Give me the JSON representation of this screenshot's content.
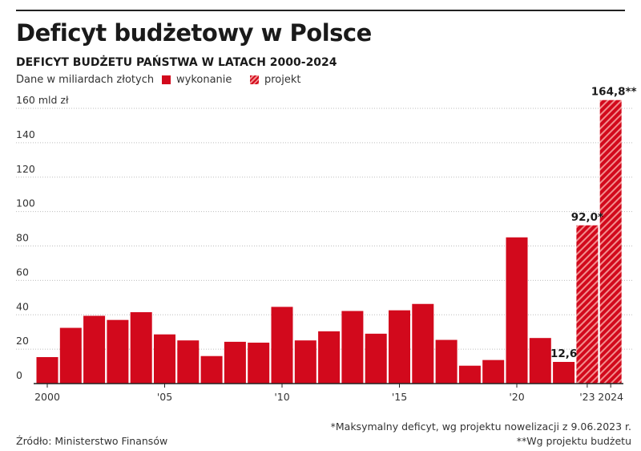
{
  "title": "Deficyt budżetowy w Polsce",
  "subtitle": "DEFICYT BUDŻETU PAŃSTWA W LATACH 2000-2024",
  "unit_note": "Dane w miliardach złotych",
  "legend": [
    {
      "label": "wykonanie",
      "style": "solid"
    },
    {
      "label": "projekt",
      "style": "hatched"
    }
  ],
  "colors": {
    "bar": "#d2091c",
    "hatch_light": "#f28e8e",
    "grid": "#bdbdbd",
    "axis": "#222222"
  },
  "footnotes": {
    "source": "Źródło: Ministerstwo Finansów",
    "note1": "*Maksymalny deficyt, wg projektu nowelizacji z 9.06.2023 r.",
    "note2": "**Wg projektu budżetu"
  },
  "chart_data": {
    "type": "bar",
    "title": "Deficyt budżetowy w Polsce",
    "subtitle": "DEFICYT BUDŻETU PAŃSTWA W LATACH 2000-2024",
    "ylabel": "Dane w miliardach złotych",
    "ylim": [
      0,
      165
    ],
    "yticks": [
      0,
      20,
      40,
      60,
      80,
      100,
      120,
      140,
      160
    ],
    "ytick_labels": [
      "0",
      "20",
      "40",
      "60",
      "80",
      "100",
      "120",
      "140",
      "160 mld zł"
    ],
    "grid": true,
    "legend_position": "top",
    "categories": [
      "2000",
      "2001",
      "2002",
      "2003",
      "2004",
      "2005",
      "2006",
      "2007",
      "2008",
      "2009",
      "2010",
      "2011",
      "2012",
      "2013",
      "2014",
      "2015",
      "2016",
      "2017",
      "2018",
      "2019",
      "2020",
      "2021",
      "2022",
      "2023",
      "2024"
    ],
    "xtick_labels": [
      {
        "category": "2000",
        "label": "2000"
      },
      {
        "category": "2005",
        "label": "'05"
      },
      {
        "category": "2010",
        "label": "'10"
      },
      {
        "category": "2015",
        "label": "'15"
      },
      {
        "category": "2020",
        "label": "'20"
      },
      {
        "category": "2023",
        "label": "'23"
      },
      {
        "category": "2024",
        "label": "2024"
      }
    ],
    "series": [
      {
        "name": "wykonanie",
        "style": "solid",
        "values": [
          15.4,
          32.4,
          39.4,
          37.0,
          41.5,
          28.6,
          25.1,
          16.0,
          24.3,
          23.8,
          44.6,
          25.1,
          30.4,
          42.2,
          29.0,
          42.6,
          46.3,
          25.4,
          10.4,
          13.7,
          85.0,
          26.5,
          12.6,
          null,
          null
        ]
      },
      {
        "name": "projekt",
        "style": "hatched",
        "values": [
          null,
          null,
          null,
          null,
          null,
          null,
          null,
          null,
          null,
          null,
          null,
          null,
          null,
          null,
          null,
          null,
          null,
          null,
          null,
          null,
          null,
          null,
          null,
          92.0,
          164.8
        ]
      }
    ],
    "data_labels": [
      {
        "category": "2022",
        "text": "12,6"
      },
      {
        "category": "2023",
        "text": "92,0*"
      },
      {
        "category": "2024",
        "text": "164,8**"
      }
    ]
  }
}
